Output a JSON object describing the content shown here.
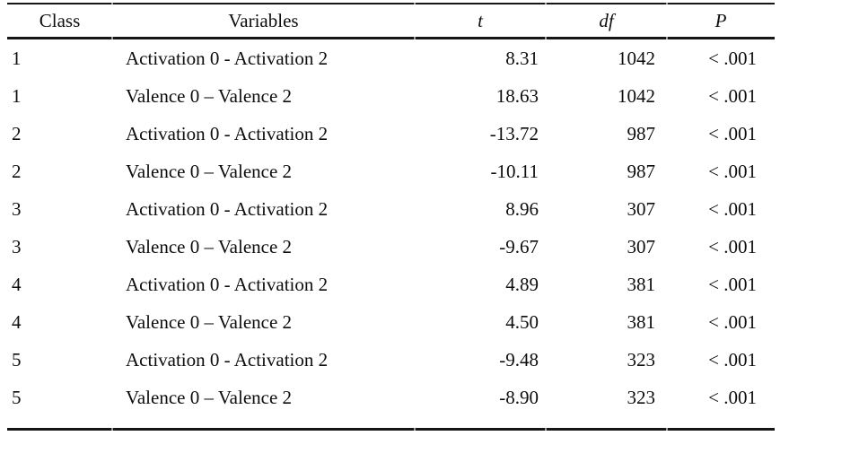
{
  "colors": {
    "background": "#ffffff",
    "text": "#0d0d0d",
    "rule_line": "#161616"
  },
  "table": {
    "columns": [
      {
        "key": "class",
        "label": "Class"
      },
      {
        "key": "variables",
        "label": "Variables"
      },
      {
        "key": "t",
        "label": "t"
      },
      {
        "key": "df",
        "label": "df"
      },
      {
        "key": "p",
        "label": "P"
      }
    ],
    "rows": [
      {
        "class": "1",
        "variables": "Activation 0 - Activation 2",
        "t": "8.31",
        "df": "1042",
        "p": "< .001"
      },
      {
        "class": "1",
        "variables": "Valence 0 – Valence 2",
        "t": "18.63",
        "df": "1042",
        "p": "< .001"
      },
      {
        "class": "2",
        "variables": "Activation 0 - Activation 2",
        "t": "-13.72",
        "df": "987",
        "p": "< .001"
      },
      {
        "class": "2",
        "variables": "Valence 0 – Valence 2",
        "t": "-10.11",
        "df": "987",
        "p": "< .001"
      },
      {
        "class": "3",
        "variables": "Activation 0 - Activation 2",
        "t": "8.96",
        "df": "307",
        "p": "< .001"
      },
      {
        "class": "3",
        "variables": "Valence 0 – Valence 2",
        "t": "-9.67",
        "df": "307",
        "p": "< .001"
      },
      {
        "class": "4",
        "variables": "Activation 0 - Activation 2",
        "t": "4.89",
        "df": "381",
        "p": "< .001"
      },
      {
        "class": "4",
        "variables": "Valence 0 – Valence 2",
        "t": "4.50",
        "df": "381",
        "p": "< .001"
      },
      {
        "class": "5",
        "variables": "Activation 0 - Activation 2",
        "t": "-9.48",
        "df": "323",
        "p": "< .001"
      },
      {
        "class": "5",
        "variables": "Valence 0 – Valence 2",
        "t": "-8.90",
        "df": "323",
        "p": "< .001"
      }
    ]
  }
}
